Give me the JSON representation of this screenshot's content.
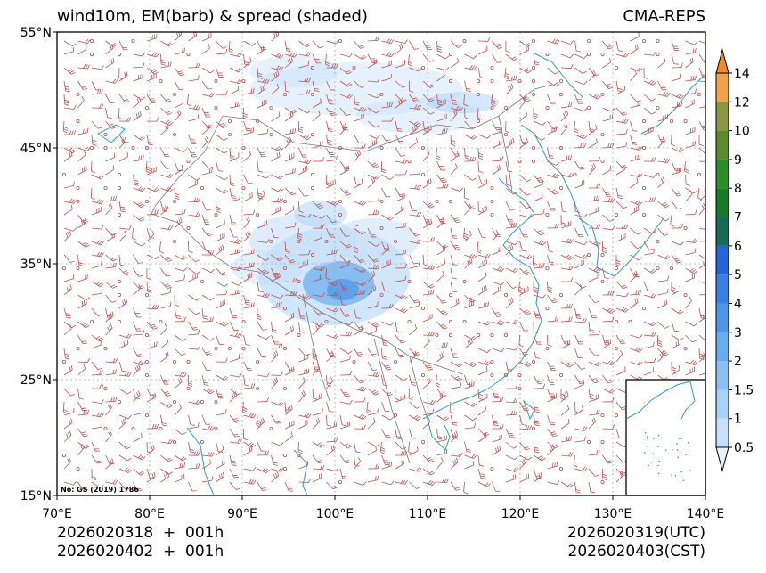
{
  "header": {
    "title_left": "wind10m, EM(barb) & spread (shaded)",
    "title_right": "CMA-REPS"
  },
  "map": {
    "lat_labels": [
      "55°N",
      "45°N",
      "35°N",
      "25°N",
      "15°N"
    ],
    "lon_labels": [
      "70°E",
      "80°E",
      "90°E",
      "100°E",
      "110°E",
      "120°E",
      "130°E",
      "140°E"
    ],
    "review_number": "No: GS (2019) 1786",
    "colors": {
      "barb": "#c0504d",
      "coast": "#2a9ad6",
      "border": "#777777",
      "grid": "#aaaaaa"
    }
  },
  "colorbar": {
    "levels": [
      "0.5",
      "1",
      "1.5",
      "2",
      "3",
      "4",
      "5",
      "6",
      "7",
      "8",
      "9",
      "10",
      "12",
      "14"
    ],
    "colors": [
      "#e6f2ff",
      "#c6e0fa",
      "#a9d1f7",
      "#8bc0f2",
      "#6aabee",
      "#4d94ea",
      "#3b7de6",
      "#2563d9",
      "#176b57",
      "#1a7a2a",
      "#2c8c2a",
      "#5c8a2f",
      "#8a9640",
      "#f2a04a",
      "#f08a2a"
    ]
  },
  "footer": {
    "line1_left": "2026020318  +  001h",
    "line2_left": "2026020402  +  001h",
    "line1_right": "2026020319(UTC)",
    "line2_right": "2026020403(CST)"
  }
}
